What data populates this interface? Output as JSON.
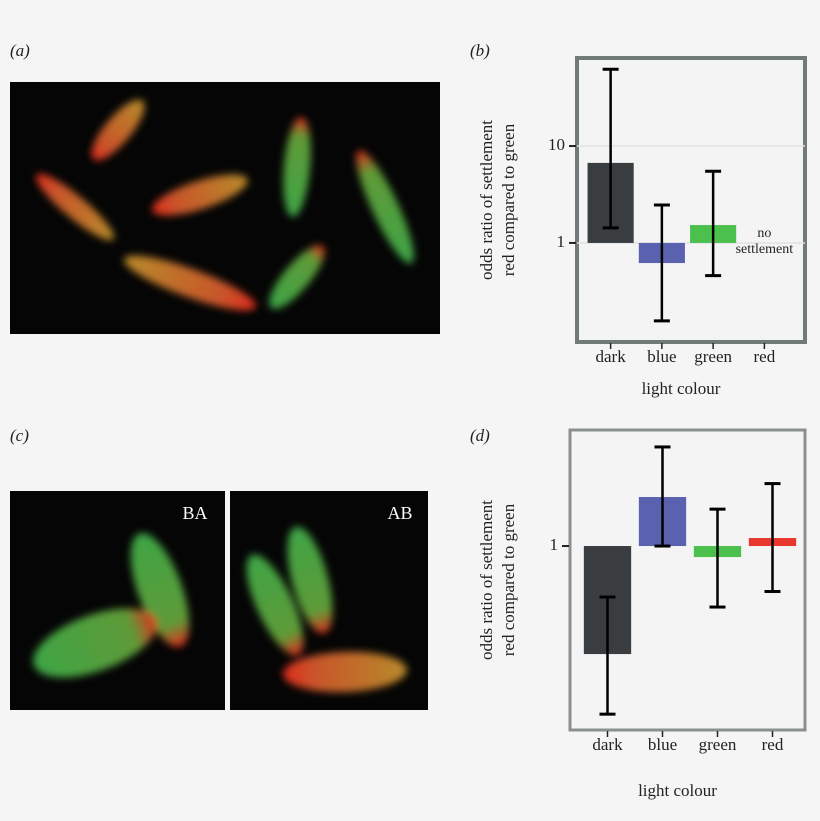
{
  "panel_labels": [
    "(a)",
    "(b)",
    "(c)",
    "(d)"
  ],
  "photo_labels": [
    "BA",
    "AB"
  ],
  "chart_data": [
    {
      "type": "bar",
      "log_y": true,
      "grid": true,
      "ylabel": [
        "odds ratio of settlement",
        "red compared to green"
      ],
      "xlabel": "light colour",
      "categories": [
        "dark",
        "blue",
        "green",
        "red"
      ],
      "values": [
        6.7,
        0.62,
        1.53,
        null
      ],
      "lower": [
        1.43,
        0.157,
        0.46,
        null
      ],
      "upper": [
        62,
        2.46,
        5.5,
        null
      ],
      "colors": [
        "#3a3d3f",
        "#5a62b0",
        "#4cc04c",
        "#e8382e"
      ],
      "annotation": [
        "no",
        "settlement"
      ],
      "ylim": [
        0.095,
        81
      ],
      "yticks": [
        1,
        10
      ]
    },
    {
      "type": "bar",
      "log_y": true,
      "grid": false,
      "ylabel": [
        "odds ratio of settlement",
        "red compared to green"
      ],
      "xlabel": "light colour",
      "categories": [
        "dark",
        "blue",
        "green",
        "red"
      ],
      "values": [
        0.077,
        3.2,
        0.77,
        1.21
      ],
      "lower": [
        0.0185,
        1.0,
        0.235,
        0.34
      ],
      "upper": [
        0.298,
        10.5,
        2.4,
        4.4
      ],
      "colors": [
        "#3a3d3f",
        "#5a62b0",
        "#4cc04c",
        "#e8382e"
      ],
      "ylim": [
        0.0127,
        15.7
      ],
      "yticks": [
        1
      ]
    }
  ]
}
